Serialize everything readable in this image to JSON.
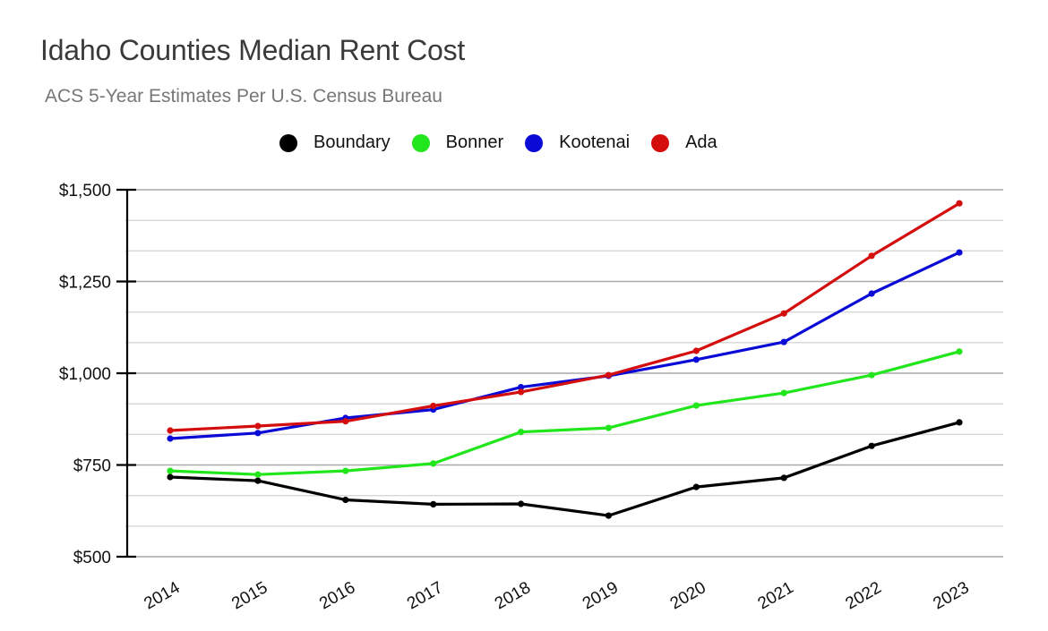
{
  "chart_data": {
    "type": "line",
    "title": "Idaho Counties Median Rent Cost",
    "subtitle": "ACS 5-Year Estimates Per U.S. Census Bureau",
    "xlabel": "",
    "ylabel": "",
    "x": [
      "2014",
      "2015",
      "2016",
      "2017",
      "2018",
      "2019",
      "2020",
      "2021",
      "2022",
      "2023"
    ],
    "ylim": [
      500,
      1500
    ],
    "yticks": [
      500,
      750,
      1000,
      1250,
      1500
    ],
    "ytick_labels": [
      "$500",
      "$750",
      "$1,000",
      "$1,250",
      "$1,500"
    ],
    "minor_gridlines_per_major": 3,
    "grid": true,
    "legend_position": "top-center",
    "series": [
      {
        "name": "Boundary",
        "color": "#000000",
        "values": [
          717,
          707,
          655,
          643,
          644,
          612,
          690,
          715,
          802,
          866
        ]
      },
      {
        "name": "Bonner",
        "color": "#22e61c",
        "values": [
          734,
          724,
          734,
          754,
          840,
          851,
          912,
          946,
          995,
          1059
        ]
      },
      {
        "name": "Kootenai",
        "color": "#0a0ad6",
        "values": [
          822,
          837,
          878,
          901,
          962,
          993,
          1037,
          1085,
          1217,
          1329
        ]
      },
      {
        "name": "Ada",
        "color": "#d40d0d",
        "values": [
          844,
          856,
          869,
          911,
          949,
          995,
          1061,
          1163,
          1320,
          1463
        ]
      }
    ]
  }
}
